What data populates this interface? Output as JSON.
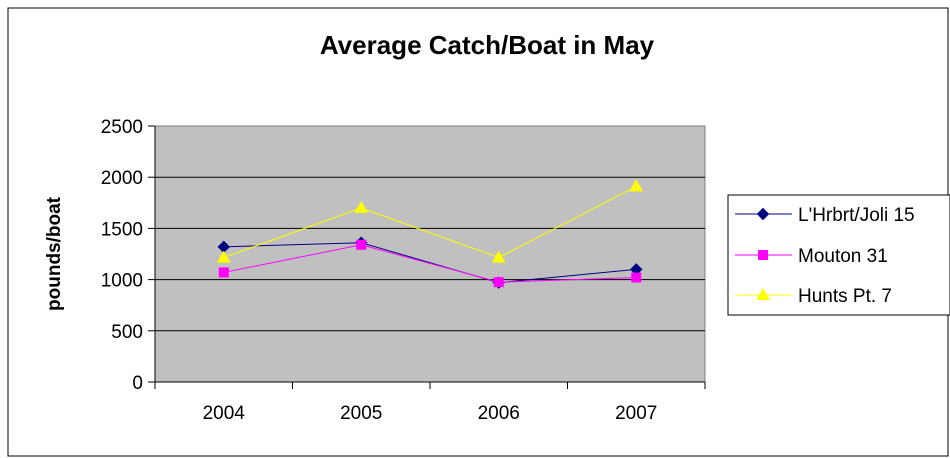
{
  "chart_data": {
    "type": "line",
    "title": "Average Catch/Boat in May",
    "xlabel": "",
    "ylabel": "pounds/boat",
    "categories": [
      "2004",
      "2005",
      "2006",
      "2007"
    ],
    "ylim": [
      0,
      2500
    ],
    "yticks": [
      0,
      500,
      1000,
      1500,
      2000,
      2500
    ],
    "grid": true,
    "legend": "right",
    "plot_background": "#c0c0c0",
    "series": [
      {
        "name": "L'Hrbrt/Joli 15",
        "values": [
          1320,
          1360,
          970,
          1100
        ],
        "color": "#000080",
        "marker": "diamond"
      },
      {
        "name": "Mouton 31",
        "values": [
          1070,
          1340,
          975,
          1020
        ],
        "color": "#ff00ff",
        "marker": "square"
      },
      {
        "name": "Hunts Pt. 7",
        "values": [
          1215,
          1700,
          1215,
          1910
        ],
        "color": "#ffff00",
        "marker": "triangle"
      }
    ]
  }
}
